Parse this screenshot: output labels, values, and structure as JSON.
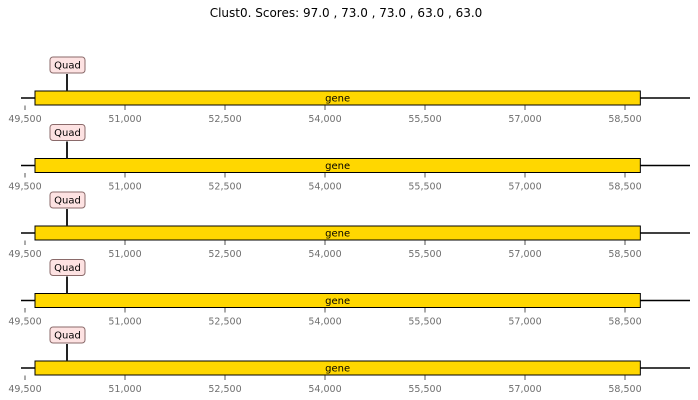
{
  "figure": {
    "title": "Clust0. Scores: 97.0 , 73.0 , 73.0 , 63.0 , 63.0"
  },
  "colors": {
    "gene_fill": "#FFD700",
    "gene_stroke": "#000000",
    "feature_fill": "#FDE2E2",
    "feature_stroke": "#8a6a6a",
    "axis_line": "#000000",
    "tick_label": "#6f6f6f"
  },
  "tracks": [
    {
      "gene": {
        "start": 49650,
        "end": 58730,
        "label": "gene"
      },
      "feature": {
        "position": 50130,
        "label": "Quad"
      }
    },
    {
      "gene": {
        "start": 49650,
        "end": 58730,
        "label": "gene"
      },
      "feature": {
        "position": 50130,
        "label": "Quad"
      }
    },
    {
      "gene": {
        "start": 49650,
        "end": 58730,
        "label": "gene"
      },
      "feature": {
        "position": 50130,
        "label": "Quad"
      }
    },
    {
      "gene": {
        "start": 49650,
        "end": 58730,
        "label": "gene"
      },
      "feature": {
        "position": 50130,
        "label": "Quad"
      }
    },
    {
      "gene": {
        "start": 49650,
        "end": 58730,
        "label": "gene"
      },
      "feature": {
        "position": 50130,
        "label": "Quad"
      }
    }
  ],
  "axis": {
    "xlim": [
      49450,
      59100
    ],
    "ticks": [
      49500,
      51000,
      52500,
      54000,
      55500,
      57000,
      58500
    ],
    "tick_labels": [
      "49,500",
      "51,000",
      "52,500",
      "54,000",
      "55,500",
      "57,000",
      "58,500"
    ]
  }
}
